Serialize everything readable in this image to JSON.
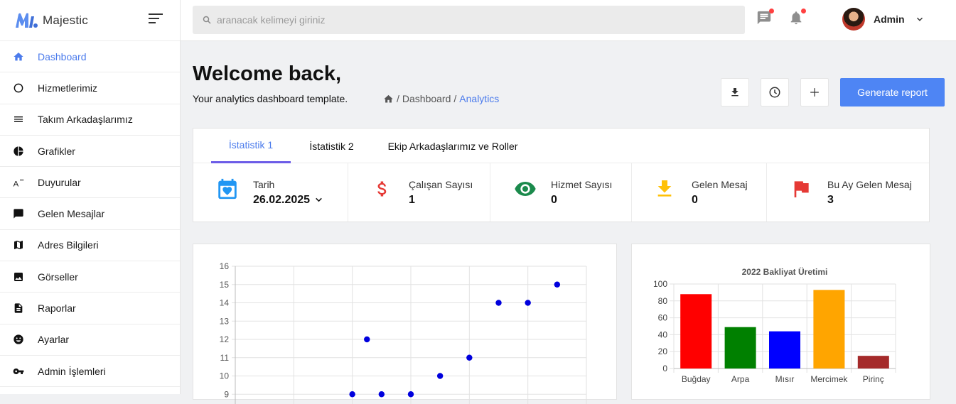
{
  "brand": {
    "name": "Majestic"
  },
  "sidebar": {
    "items": [
      {
        "label": "Dashboard",
        "icon": "home-icon",
        "active": true
      },
      {
        "label": "Hizmetlerimiz",
        "icon": "circle-icon"
      },
      {
        "label": "Takım Arkadaşlarımız",
        "icon": "list-icon"
      },
      {
        "label": "Grafikler",
        "icon": "pie-chart-icon"
      },
      {
        "label": "Duyurular",
        "icon": "text-format-icon"
      },
      {
        "label": "Gelen Mesajlar",
        "icon": "chat-icon"
      },
      {
        "label": "Adres Bilgileri",
        "icon": "map-icon"
      },
      {
        "label": "Görseller",
        "icon": "image-icon"
      },
      {
        "label": "Raporlar",
        "icon": "document-icon"
      },
      {
        "label": "Ayarlar",
        "icon": "smiley-icon"
      },
      {
        "label": "Admin İşlemleri",
        "icon": "key-icon"
      }
    ]
  },
  "topbar": {
    "search_placeholder": "aranacak kelimeyi giriniz",
    "user_name": "Admin"
  },
  "header": {
    "title": "Welcome back,",
    "subtitle": "Your analytics dashboard template.",
    "breadcrumb": [
      "Dashboard",
      "Analytics"
    ],
    "generate_label": "Generate report"
  },
  "stats": {
    "tabs": [
      "İstatistik 1",
      "İstatistik 2",
      "Ekip Arkadaşlarımız ve Roller"
    ],
    "items": [
      {
        "label": "Tarih",
        "value": "26.02.2025",
        "icon": "calendar-heart-icon",
        "color": "#2196f3"
      },
      {
        "label": "Çalışan Sayısı",
        "value": "1",
        "icon": "dollar-icon",
        "color": "#e53935"
      },
      {
        "label": "Hizmet Sayısı",
        "value": "0",
        "icon": "eye-icon",
        "color": "#1b8a4c"
      },
      {
        "label": "Gelen Mesaj",
        "value": "0",
        "icon": "download-icon",
        "color": "#ffc107"
      },
      {
        "label": "Bu Ay Gelen Mesaj",
        "value": "3",
        "icon": "flag-icon",
        "color": "#e53935"
      }
    ]
  },
  "colors": {
    "accent": "#4b7bec",
    "button": "#4e85f4",
    "tab_underline": "#6c5ce7"
  },
  "chart_data": [
    {
      "type": "scatter",
      "title": "",
      "ylim": [
        8,
        16
      ],
      "yticks": [
        9,
        10,
        11,
        12,
        13,
        14,
        15,
        16
      ],
      "points": [
        {
          "x": 4,
          "y": 9
        },
        {
          "x": 4.5,
          "y": 12
        },
        {
          "x": 5,
          "y": 9
        },
        {
          "x": 6,
          "y": 9
        },
        {
          "x": 7,
          "y": 10
        },
        {
          "x": 8,
          "y": 11
        },
        {
          "x": 9,
          "y": 14
        },
        {
          "x": 10,
          "y": 14
        },
        {
          "x": 11,
          "y": 15
        }
      ],
      "xlim": [
        0,
        12
      ],
      "point_color": "#0000dd",
      "grid": true
    },
    {
      "type": "bar",
      "title": "2022 Bakliyat Üretimi",
      "categories": [
        "Buğday",
        "Arpa",
        "Mısır",
        "Mercimek",
        "Pirinç"
      ],
      "values": [
        88,
        49,
        44,
        93,
        15
      ],
      "colors": [
        "#ff0000",
        "#008000",
        "#0000ff",
        "#ffa500",
        "#a52a2a"
      ],
      "ylim": [
        0,
        100
      ],
      "yticks": [
        0,
        20,
        40,
        60,
        80,
        100
      ],
      "grid": true
    }
  ]
}
